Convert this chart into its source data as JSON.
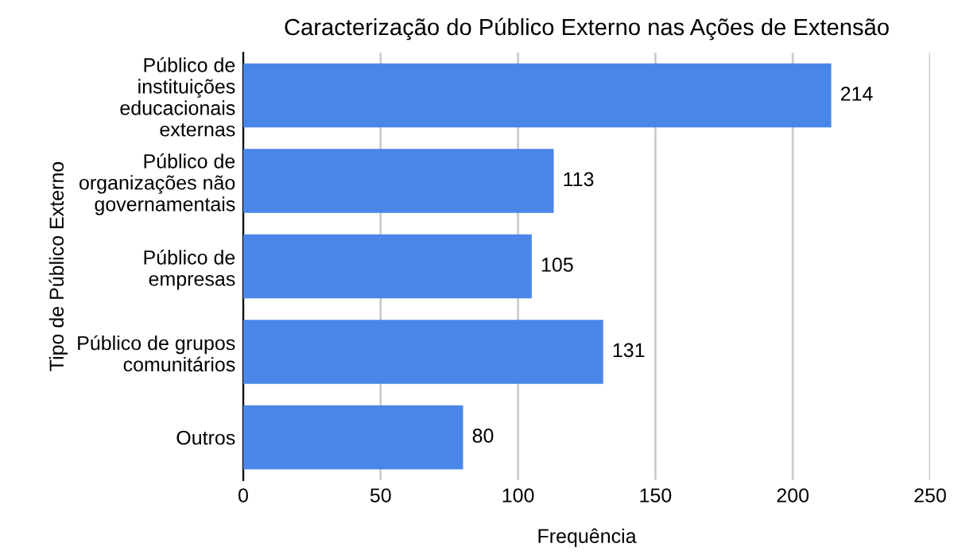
{
  "chart_data": {
    "type": "bar",
    "orientation": "horizontal",
    "title": "Caracterização do Público Externo nas Ações de Extensão",
    "xlabel": "Frequência",
    "ylabel": "Tipo de Público Externo",
    "categories": [
      "Público de\ninstituições\neducacionais\nexternas",
      "Público de\norganizações não\ngovernamentais",
      "Público de\nempresas",
      "Público de grupos\ncomunitários",
      "Outros"
    ],
    "values": [
      214,
      113,
      105,
      131,
      80
    ],
    "color": "#4a86e8",
    "xlim": [
      0,
      250
    ],
    "xticks": [
      0,
      50,
      100,
      150,
      200,
      250
    ],
    "grid": "x",
    "data_labels": true
  }
}
